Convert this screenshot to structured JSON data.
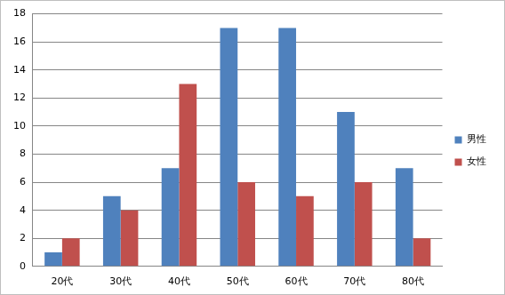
{
  "chart_data": {
    "type": "bar",
    "categories": [
      "20代",
      "30代",
      "40代",
      "50代",
      "60代",
      "70代",
      "80代"
    ],
    "series": [
      {
        "name": "男性",
        "color": "#4f81bd",
        "values": [
          1,
          5,
          7,
          17,
          17,
          11,
          7
        ]
      },
      {
        "name": "女性",
        "color": "#c0504d",
        "values": [
          2,
          4,
          13,
          6,
          5,
          6,
          2
        ]
      }
    ],
    "ylim": [
      0,
      18
    ],
    "yticks": [
      0,
      2,
      4,
      6,
      8,
      10,
      12,
      14,
      16,
      18
    ],
    "grid": true,
    "legend": "right"
  }
}
